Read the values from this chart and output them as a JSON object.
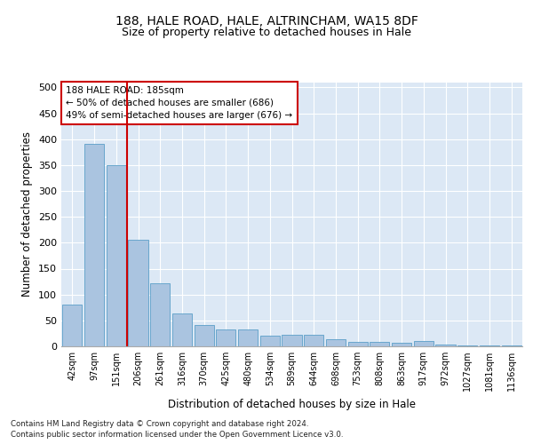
{
  "title1": "188, HALE ROAD, HALE, ALTRINCHAM, WA15 8DF",
  "title2": "Size of property relative to detached houses in Hale",
  "xlabel": "Distribution of detached houses by size in Hale",
  "ylabel": "Number of detached properties",
  "categories": [
    "42sqm",
    "97sqm",
    "151sqm",
    "206sqm",
    "261sqm",
    "316sqm",
    "370sqm",
    "425sqm",
    "480sqm",
    "534sqm",
    "589sqm",
    "644sqm",
    "698sqm",
    "753sqm",
    "808sqm",
    "863sqm",
    "917sqm",
    "972sqm",
    "1027sqm",
    "1081sqm",
    "1136sqm"
  ],
  "values": [
    80,
    390,
    350,
    205,
    122,
    63,
    42,
    32,
    32,
    20,
    23,
    23,
    14,
    8,
    8,
    7,
    10,
    3,
    2,
    2,
    1
  ],
  "bar_color": "#aac4e0",
  "bar_edge_color": "#5a9fc8",
  "vline_x": 2.5,
  "vline_color": "#cc0000",
  "annotation_text": "188 HALE ROAD: 185sqm\n← 50% of detached houses are smaller (686)\n49% of semi-detached houses are larger (676) →",
  "annotation_box_color": "#ffffff",
  "annotation_box_edge": "#cc0000",
  "ylim": [
    0,
    510
  ],
  "yticks": [
    0,
    50,
    100,
    150,
    200,
    250,
    300,
    350,
    400,
    450,
    500
  ],
  "plot_bg": "#dce8f5",
  "grid_color": "#ffffff",
  "footer1": "Contains HM Land Registry data © Crown copyright and database right 2024.",
  "footer2": "Contains public sector information licensed under the Open Government Licence v3.0.",
  "title1_fontsize": 10,
  "title2_fontsize": 9,
  "xlabel_fontsize": 8.5,
  "ylabel_fontsize": 8.5
}
